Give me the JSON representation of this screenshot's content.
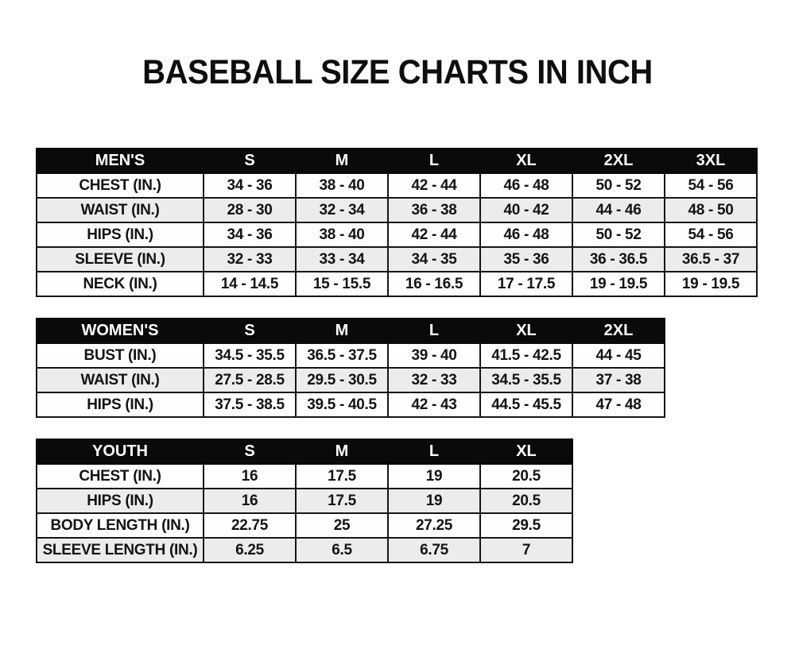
{
  "title": "BASEBALL SIZE CHARTS IN INCH",
  "colors": {
    "page_background": "#ffffff",
    "header_bg": "#0a0a0a",
    "header_text": "#ffffff",
    "row_bg": "#fefefe",
    "row_alt_bg": "#ececec",
    "border": "#161616",
    "text": "#131313"
  },
  "chart_data": [
    {
      "type": "table",
      "title": "MEN'S",
      "columns": [
        "S",
        "M",
        "L",
        "XL",
        "2XL",
        "3XL"
      ],
      "rows": [
        {
          "label": "CHEST (IN.)",
          "values": [
            "34 - 36",
            "38 - 40",
            "42 - 44",
            "46 - 48",
            "50 - 52",
            "54 - 56"
          ]
        },
        {
          "label": "WAIST (IN.)",
          "values": [
            "28 - 30",
            "32 - 34",
            "36 - 38",
            "40 - 42",
            "44 - 46",
            "48 - 50"
          ]
        },
        {
          "label": "HIPS (IN.)",
          "values": [
            "34 - 36",
            "38 - 40",
            "42 - 44",
            "46 - 48",
            "50 - 52",
            "54 - 56"
          ]
        },
        {
          "label": "SLEEVE (IN.)",
          "values": [
            "32 - 33",
            "33 - 34",
            "34 - 35",
            "35 - 36",
            "36 - 36.5",
            "36.5 - 37"
          ]
        },
        {
          "label": "NECK (IN.)",
          "values": [
            "14 - 14.5",
            "15 - 15.5",
            "16 - 16.5",
            "17 - 17.5",
            "19 - 19.5",
            "19 - 19.5"
          ]
        }
      ]
    },
    {
      "type": "table",
      "title": "WOMEN'S",
      "columns": [
        "S",
        "M",
        "L",
        "XL",
        "2XL"
      ],
      "rows": [
        {
          "label": "BUST (IN.)",
          "values": [
            "34.5 - 35.5",
            "36.5 - 37.5",
            "39 - 40",
            "41.5 - 42.5",
            "44 - 45"
          ]
        },
        {
          "label": "WAIST (IN.)",
          "values": [
            "27.5 - 28.5",
            "29.5 - 30.5",
            "32 - 33",
            "34.5 - 35.5",
            "37 - 38"
          ]
        },
        {
          "label": "HIPS (IN.)",
          "values": [
            "37.5 - 38.5",
            "39.5 - 40.5",
            "42 - 43",
            "44.5 - 45.5",
            "47 - 48"
          ]
        }
      ]
    },
    {
      "type": "table",
      "title": "YOUTH",
      "columns": [
        "S",
        "M",
        "L",
        "XL"
      ],
      "rows": [
        {
          "label": "CHEST (IN.)",
          "values": [
            "16",
            "17.5",
            "19",
            "20.5"
          ]
        },
        {
          "label": "HIPS (IN.)",
          "values": [
            "16",
            "17.5",
            "19",
            "20.5"
          ]
        },
        {
          "label": "BODY LENGTH (IN.)",
          "values": [
            "22.75",
            "25",
            "27.25",
            "29.5"
          ]
        },
        {
          "label": "SLEEVE LENGTH (IN.)",
          "values": [
            "6.25",
            "6.5",
            "6.75",
            "7"
          ]
        }
      ]
    }
  ]
}
